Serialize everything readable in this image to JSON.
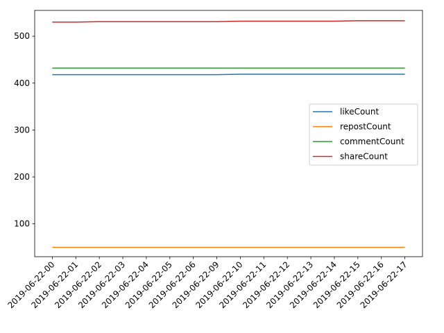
{
  "chart_data": {
    "type": "line",
    "title": "",
    "xlabel": "",
    "ylabel": "",
    "categories": [
      "2019-06-22-00",
      "2019-06-22-01",
      "2019-06-22-02",
      "2019-06-22-03",
      "2019-06-22-04",
      "2019-06-22-05",
      "2019-06-22-06",
      "2019-06-22-09",
      "2019-06-22-10",
      "2019-06-22-11",
      "2019-06-22-12",
      "2019-06-22-13",
      "2019-06-22-14",
      "2019-06-22-15",
      "2019-06-22-16",
      "2019-06-22-17"
    ],
    "ylim": [
      30,
      555
    ],
    "yticks": [
      100,
      200,
      300,
      400,
      500
    ],
    "grid": false,
    "legend_position": "right",
    "series": [
      {
        "name": "likeCount",
        "color": "#1f77b4",
        "values": [
          418,
          418,
          418,
          418,
          418,
          418,
          418,
          418,
          419,
          419,
          419,
          419,
          419,
          419,
          419,
          419
        ]
      },
      {
        "name": "repostCount",
        "color": "#ff7f0e",
        "values": [
          50,
          50,
          50,
          50,
          50,
          50,
          50,
          50,
          50,
          50,
          50,
          50,
          50,
          50,
          50,
          50
        ]
      },
      {
        "name": "commentCount",
        "color": "#2ca02c",
        "values": [
          432,
          432,
          432,
          432,
          432,
          432,
          432,
          432,
          432,
          432,
          432,
          432,
          432,
          432,
          432,
          432
        ]
      },
      {
        "name": "shareCount",
        "color": "#d62728",
        "values": [
          530,
          530,
          531,
          531,
          531,
          531,
          531,
          531,
          532,
          532,
          532,
          532,
          532,
          533,
          533,
          533
        ]
      }
    ]
  }
}
